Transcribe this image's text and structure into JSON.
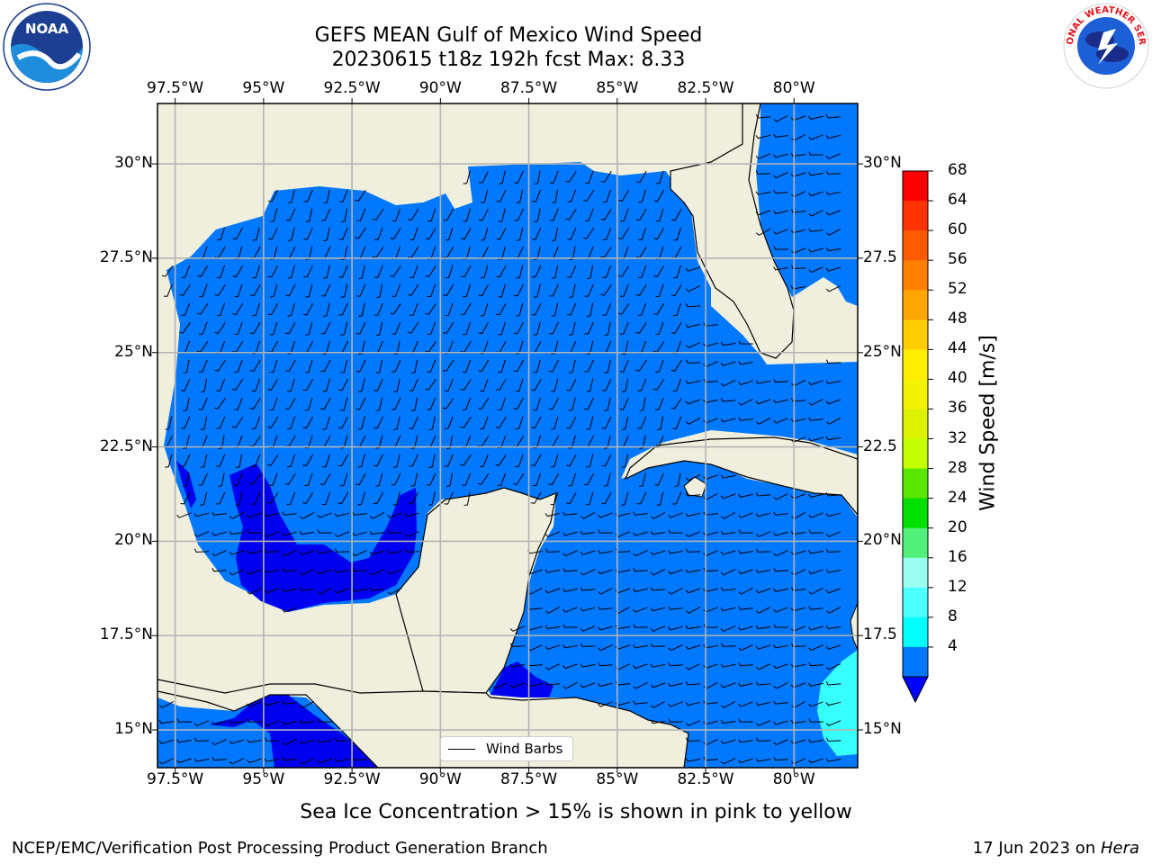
{
  "title": {
    "line1": "GEFS MEAN Gulf of Mexico Wind Speed",
    "line2": "20230615 t18z 192h fcst   Max: 8.33"
  },
  "axes": {
    "lon_labels": [
      "97.5°W",
      "95°W",
      "92.5°W",
      "90°W",
      "87.5°W",
      "85°W",
      "82.5°W",
      "80°W"
    ],
    "lon_values": [
      -97.5,
      -95,
      -92.5,
      -90,
      -87.5,
      -85,
      -82.5,
      -80
    ],
    "lat_labels": [
      "30°N",
      "27.5°N",
      "25°N",
      "22.5°N",
      "20°N",
      "17.5°N",
      "15°N"
    ],
    "lat_values": [
      30,
      27.5,
      25,
      22.5,
      20,
      17.5,
      15
    ],
    "lat_labels_right": [
      "30°N",
      "27.5",
      "25°N",
      "22.5",
      "20°N",
      "17.5",
      "15°N"
    ],
    "extent": {
      "lon_min": -98,
      "lon_max": -78.2,
      "lat_min": 14,
      "lat_max": 31.6
    },
    "grid": true
  },
  "colorbar": {
    "title": "Wind Speed [m/s]",
    "ticks": [
      "68",
      "64",
      "60",
      "56",
      "52",
      "48",
      "44",
      "40",
      "36",
      "32",
      "28",
      "24",
      "20",
      "16",
      "12",
      "8",
      "4"
    ],
    "colors": [
      "#ff0000",
      "#ff3300",
      "#ff5a00",
      "#ff8000",
      "#ffa600",
      "#ffcc00",
      "#ffee00",
      "#f3f300",
      "#ddf200",
      "#c4ff00",
      "#5ae600",
      "#00e000",
      "#50f07a",
      "#9bfff0",
      "#4dffff",
      "#00ffff",
      "#0077ff"
    ],
    "under_color": "#0000ff"
  },
  "legend": {
    "label": "Wind Barbs"
  },
  "colors": {
    "land": "#f0eedc",
    "ocean": "#0078ff",
    "low": "#0000f0",
    "high": "#38ffff"
  },
  "footer": {
    "center": "Sea Ice Concentration > 15% is shown in pink to yellow",
    "left": "NCEP/EMC/Verification Post Processing Product Generation Branch",
    "right_prefix": "17 Jun 2023 on ",
    "right_italic": "Hera"
  },
  "logos": {
    "left": "NOAA",
    "right": "NATIONAL WEATHER SERVICE"
  },
  "max_value": 8.33
}
